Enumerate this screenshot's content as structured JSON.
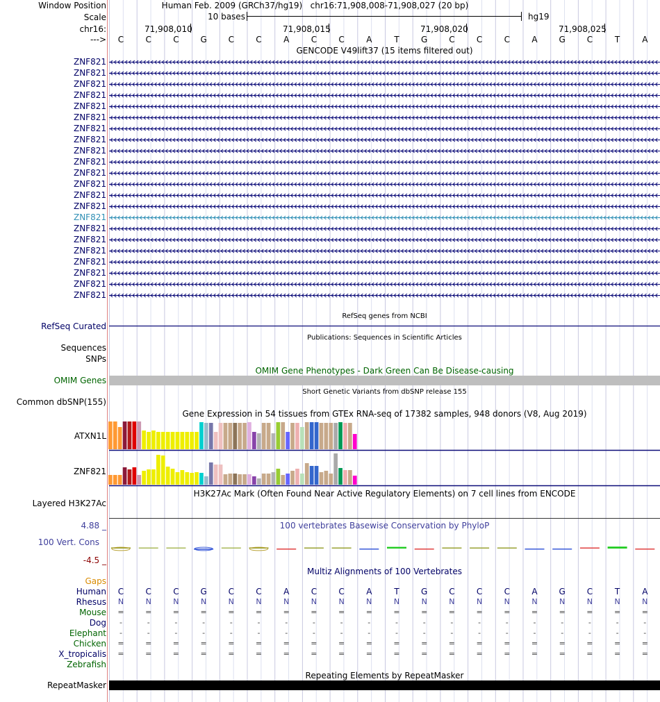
{
  "header": {
    "window_position_label": "Window Position",
    "window_position_text": "Human Feb. 2009 (GRCh37/hg19)   chr16:71,908,008-71,908,027 (20 bp)",
    "scale_label": "Scale",
    "scale_text": "10 bases",
    "assembly": "hg19",
    "chrom_label": "chr16:",
    "strand_label": "--->",
    "ticks": [
      "71,908,010",
      "71,908,015",
      "71,908,020",
      "71,908,025"
    ]
  },
  "sequence": [
    "C",
    "C",
    "C",
    "G",
    "C",
    "C",
    "A",
    "C",
    "C",
    "A",
    "T",
    "G",
    "C",
    "C",
    "C",
    "A",
    "G",
    "C",
    "T",
    "A"
  ],
  "gencode": {
    "title": "GENCODE V49lift37 (15 items filtered out)",
    "rows": [
      "ZNF821",
      "ZNF821",
      "ZNF821",
      "ZNF821",
      "ZNF821",
      "ZNF821",
      "ZNF821",
      "ZNF821",
      "ZNF821",
      "ZNF821",
      "ZNF821",
      "ZNF821",
      "ZNF821",
      "ZNF821",
      "ZNF821",
      "ZNF821",
      "ZNF821",
      "ZNF821",
      "ZNF821",
      "ZNF821",
      "ZNF821",
      "ZNF821"
    ],
    "highlight_index": 14
  },
  "refseq": {
    "title": "RefSeq genes from NCBI",
    "label": "RefSeq Curated"
  },
  "publications": {
    "title": "Publications: Sequences in Scientific Articles",
    "label": "Sequences"
  },
  "snps": {
    "label": "SNPs"
  },
  "omim": {
    "title": "OMIM Gene Phenotypes - Dark Green Can Be Disease-causing",
    "label": "OMIM Genes"
  },
  "dbsnp": {
    "title": "Short Genetic Variants from dbSNP release 155",
    "label": "Common dbSNP(155)"
  },
  "gtex": {
    "title": "Gene Expression in 54 tissues from GTEx RNA-seq of 17382 samples, 948 donors (V8, Aug 2019)",
    "colors": [
      "#ff9933",
      "#ff9933",
      "#ff9933",
      "#8b1a3a",
      "#b21a1a",
      "#e00000",
      "#cc99b2",
      "#eeee00",
      "#eeee00",
      "#eeee00",
      "#eeee00",
      "#eeee00",
      "#eeee00",
      "#eeee00",
      "#eeee00",
      "#eeee00",
      "#eeee00",
      "#eeee00",
      "#eeee00",
      "#00d0d0",
      "#99bbcc",
      "#7777aa",
      "#eec0c0",
      "#eec0c0",
      "#c7a98a",
      "#c7a98a",
      "#8c7458",
      "#c7a98a",
      "#c7a98a",
      "#e0b0e0",
      "#8844aa",
      "#b3b3b3",
      "#c7a98a",
      "#c7a98a",
      "#b3b3b3",
      "#99cc33",
      "#c7a98a",
      "#6666ff",
      "#c7a98a",
      "#eeb0b0",
      "#b8e0b8",
      "#c7a98a",
      "#3366cc",
      "#3366cc",
      "#c7a98a",
      "#c7a98a",
      "#c7a98a",
      "#aaaaaa",
      "#009955",
      "#eeb0b0",
      "#c7a98a",
      "#ff00cc"
    ],
    "genes": [
      {
        "name": "ATXN1L",
        "values": [
          40,
          40,
          32,
          40,
          40,
          40,
          40,
          27,
          25,
          27,
          25,
          25,
          25,
          25,
          25,
          25,
          25,
          25,
          25,
          39,
          38,
          38,
          25,
          38,
          38,
          38,
          38,
          38,
          38,
          39,
          25,
          23,
          38,
          38,
          23,
          39,
          39,
          25,
          38,
          38,
          32,
          39,
          39,
          39,
          38,
          38,
          38,
          38,
          39,
          38,
          38,
          22
        ]
      },
      {
        "name": "ZNF821",
        "values": [
          14,
          14,
          14,
          25,
          22,
          25,
          14,
          20,
          22,
          22,
          43,
          42,
          26,
          23,
          18,
          21,
          18,
          17,
          18,
          17,
          12,
          32,
          29,
          29,
          15,
          16,
          16,
          15,
          15,
          15,
          12,
          9,
          16,
          16,
          18,
          23,
          14,
          16,
          20,
          23,
          16,
          31,
          27,
          27,
          18,
          20,
          16,
          45,
          24,
          21,
          21,
          13
        ]
      }
    ]
  },
  "h3k27ac": {
    "title": "H3K27Ac Mark (Often Found Near Active Regulatory Elements) on 7 cell lines from ENCODE",
    "label": "Layered H3K27Ac"
  },
  "phylop": {
    "title": "100 vertebrates Basewise Conservation by PhyloP",
    "label": "100 Vert. Cons",
    "max_label": "4.88 _",
    "min_label": "-4.5 _",
    "scores": [
      0.4,
      0.2,
      0.2,
      -0.4,
      0.2,
      0.4,
      -0.2,
      0.2,
      0.2,
      -0.15,
      0.6,
      -0.3,
      0.2,
      0.2,
      0.2,
      -0.2,
      -0.3,
      0.2,
      0.7,
      -0.2
    ]
  },
  "multiz": {
    "title": "Multiz Alignments of 100 Vertebrates",
    "gaps_label": "Gaps",
    "species": [
      {
        "name": "Human",
        "bases": [
          "C",
          "C",
          "C",
          "G",
          "C",
          "C",
          "A",
          "C",
          "C",
          "A",
          "T",
          "G",
          "C",
          "C",
          "C",
          "A",
          "G",
          "C",
          "T",
          "A"
        ]
      },
      {
        "name": "Rhesus",
        "bases": [
          "N",
          "N",
          "N",
          "N",
          "N",
          "N",
          "N",
          "N",
          "N",
          "N",
          "N",
          "N",
          "N",
          "N",
          "N",
          "N",
          "N",
          "N",
          "N",
          "N"
        ]
      },
      {
        "name": "Mouse",
        "bases": [
          "=",
          "=",
          "=",
          "=",
          "=",
          "=",
          "=",
          "=",
          "=",
          "=",
          "=",
          "=",
          "=",
          "=",
          "=",
          "=",
          "=",
          "=",
          "=",
          "="
        ]
      },
      {
        "name": "Dog",
        "bases": [
          "-",
          "-",
          "-",
          "-",
          "-",
          "-",
          "-",
          "-",
          "-",
          "-",
          "-",
          "-",
          "-",
          "-",
          "-",
          "-",
          "-",
          "-",
          "-",
          "-"
        ]
      },
      {
        "name": "Elephant",
        "bases": [
          "-",
          "-",
          "-",
          "-",
          "-",
          "-",
          "-",
          "-",
          "-",
          "-",
          "-",
          "-",
          "-",
          "-",
          "-",
          "-",
          "-",
          "-",
          "-",
          "-"
        ]
      },
      {
        "name": "Chicken",
        "bases": [
          "=",
          "=",
          "=",
          "=",
          "=",
          "=",
          "=",
          "=",
          "=",
          "=",
          "=",
          "=",
          "=",
          "=",
          "=",
          "=",
          "=",
          "=",
          "=",
          "="
        ]
      },
      {
        "name": "X_tropicalis",
        "bases": [
          "=",
          "=",
          "=",
          "=",
          "=",
          "=",
          "=",
          "=",
          "=",
          "=",
          "=",
          "=",
          "=",
          "=",
          "=",
          "=",
          "=",
          "=",
          "=",
          "="
        ]
      },
      {
        "name": "Zebrafish",
        "bases": []
      }
    ]
  },
  "repeatmasker": {
    "title": "Repeating Elements by RepeatMasker",
    "label": "RepeatMasker"
  }
}
